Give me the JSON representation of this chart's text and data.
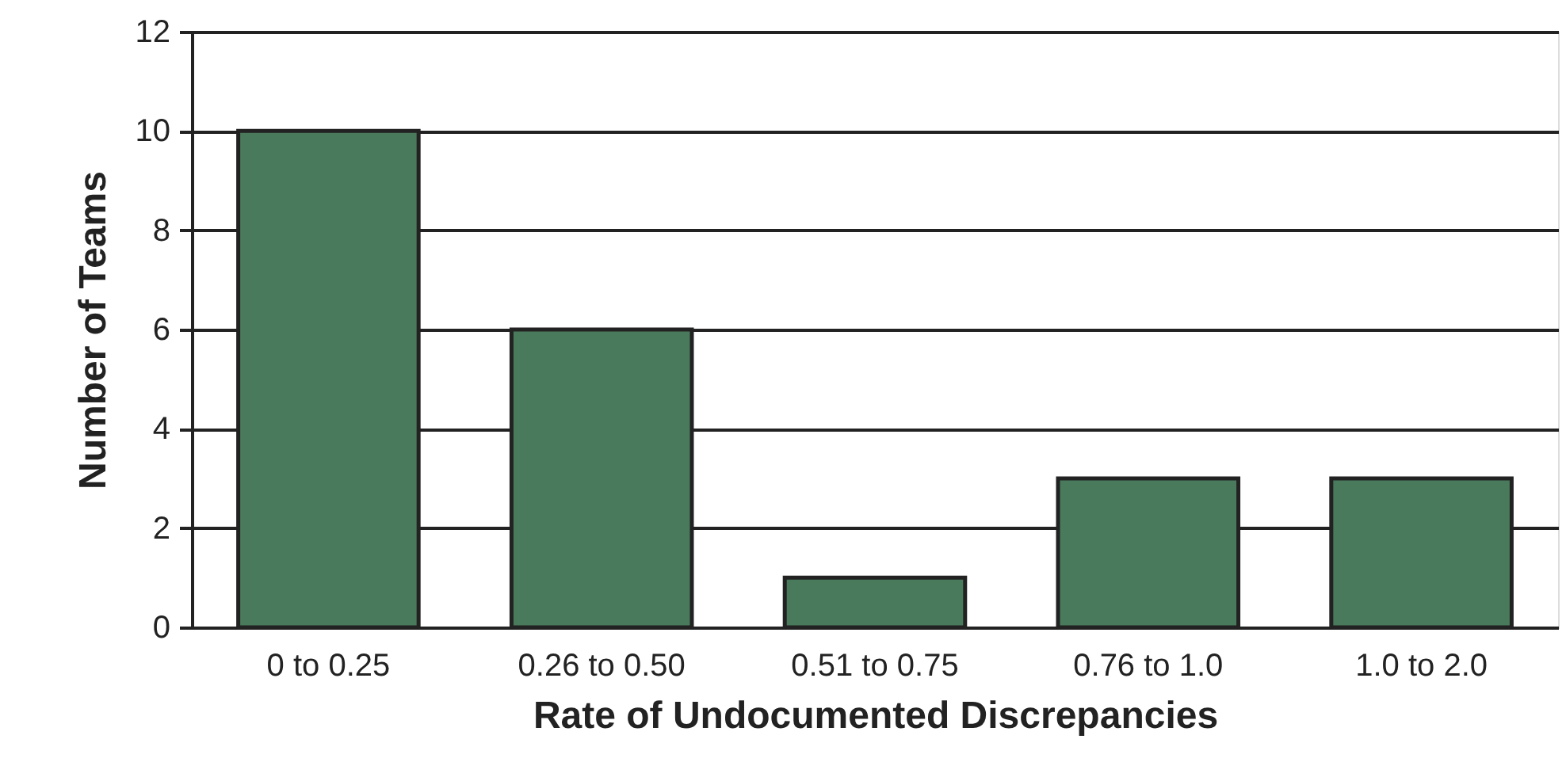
{
  "chart_data": {
    "type": "bar",
    "xlabel": "Rate of Undocumented Discrepancies",
    "ylabel": "Number of Teams",
    "categories": [
      "0 to 0.25",
      "0.26 to 0.50",
      "0.51 to 0.75",
      "0.76 to 1.0",
      "1.0 to 2.0"
    ],
    "values": [
      10,
      6,
      1,
      3,
      3
    ],
    "color": "#4a7a5c",
    "ylim": [
      0,
      12
    ],
    "yticks": [
      0,
      2,
      4,
      6,
      8,
      10,
      12
    ],
    "grid": "y"
  }
}
